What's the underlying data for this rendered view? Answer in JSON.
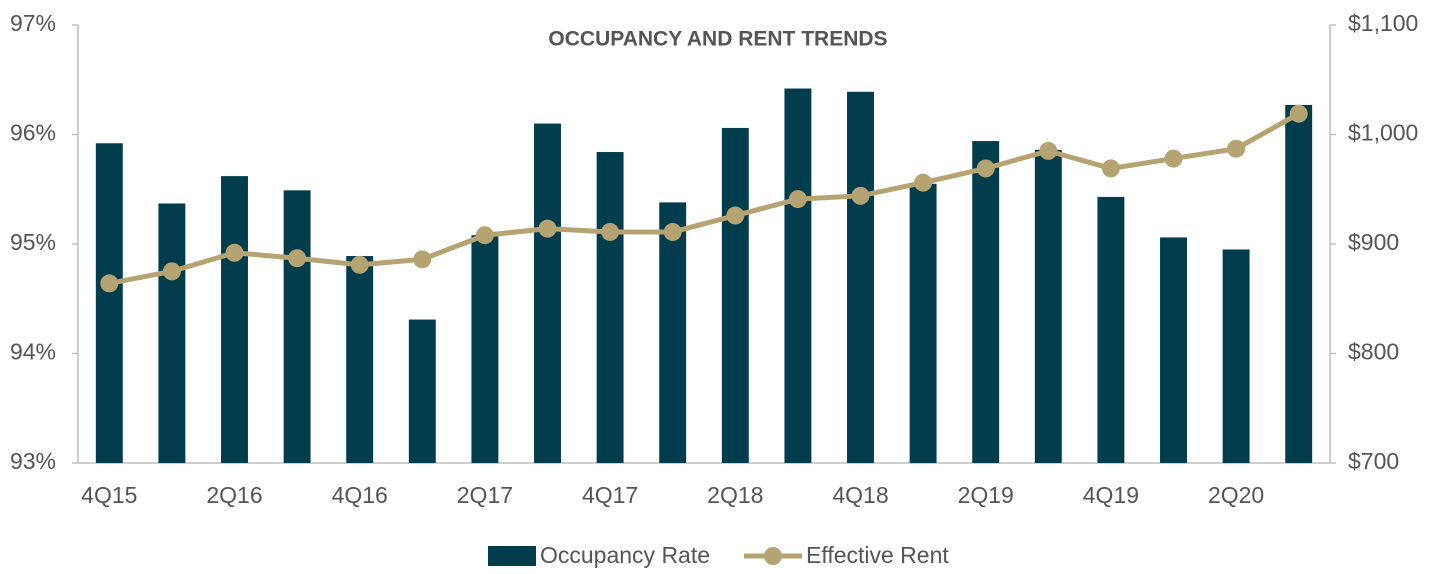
{
  "chart_data": {
    "type": "bar-line",
    "title": "OCCUPANCY AND RENT TRENDS",
    "categories": [
      "4Q15",
      null,
      "2Q16",
      null,
      "4Q16",
      null,
      "2Q17",
      null,
      "4Q17",
      null,
      "2Q18",
      null,
      "4Q18",
      null,
      "2Q19",
      null,
      "4Q19",
      null,
      "2Q20",
      null
    ],
    "series": [
      {
        "name": "Occupancy Rate",
        "type": "bar",
        "color": "#013d4d",
        "axis": "y",
        "values": [
          95.92,
          95.37,
          95.62,
          95.49,
          94.89,
          94.31,
          95.08,
          96.1,
          95.84,
          95.38,
          96.06,
          96.42,
          96.39,
          95.55,
          95.94,
          95.86,
          95.43,
          95.06,
          94.95,
          96.27
        ]
      },
      {
        "name": "Effective Rent",
        "type": "line",
        "color": "#b5a371",
        "axis": "y2",
        "values": [
          864,
          875,
          892,
          887,
          881,
          886,
          908,
          914,
          911,
          911,
          926,
          941,
          944,
          956,
          969,
          985,
          969,
          978,
          987,
          1019
        ]
      }
    ],
    "ylim": [
      93,
      97
    ],
    "yticks": [
      {
        "value": 93,
        "label": "93%"
      },
      {
        "value": 94,
        "label": "94%"
      },
      {
        "value": 95,
        "label": "95%"
      },
      {
        "value": 96,
        "label": "96%"
      },
      {
        "value": 97,
        "label": "97%"
      }
    ],
    "y2lim": [
      700,
      1100
    ],
    "y2ticks": [
      {
        "value": 700,
        "label": "$700"
      },
      {
        "value": 800,
        "label": "$800"
      },
      {
        "value": 900,
        "label": "$900"
      },
      {
        "value": 1000,
        "label": "$1,000"
      },
      {
        "value": 1100,
        "label": "$1,100"
      }
    ],
    "grid": false
  }
}
